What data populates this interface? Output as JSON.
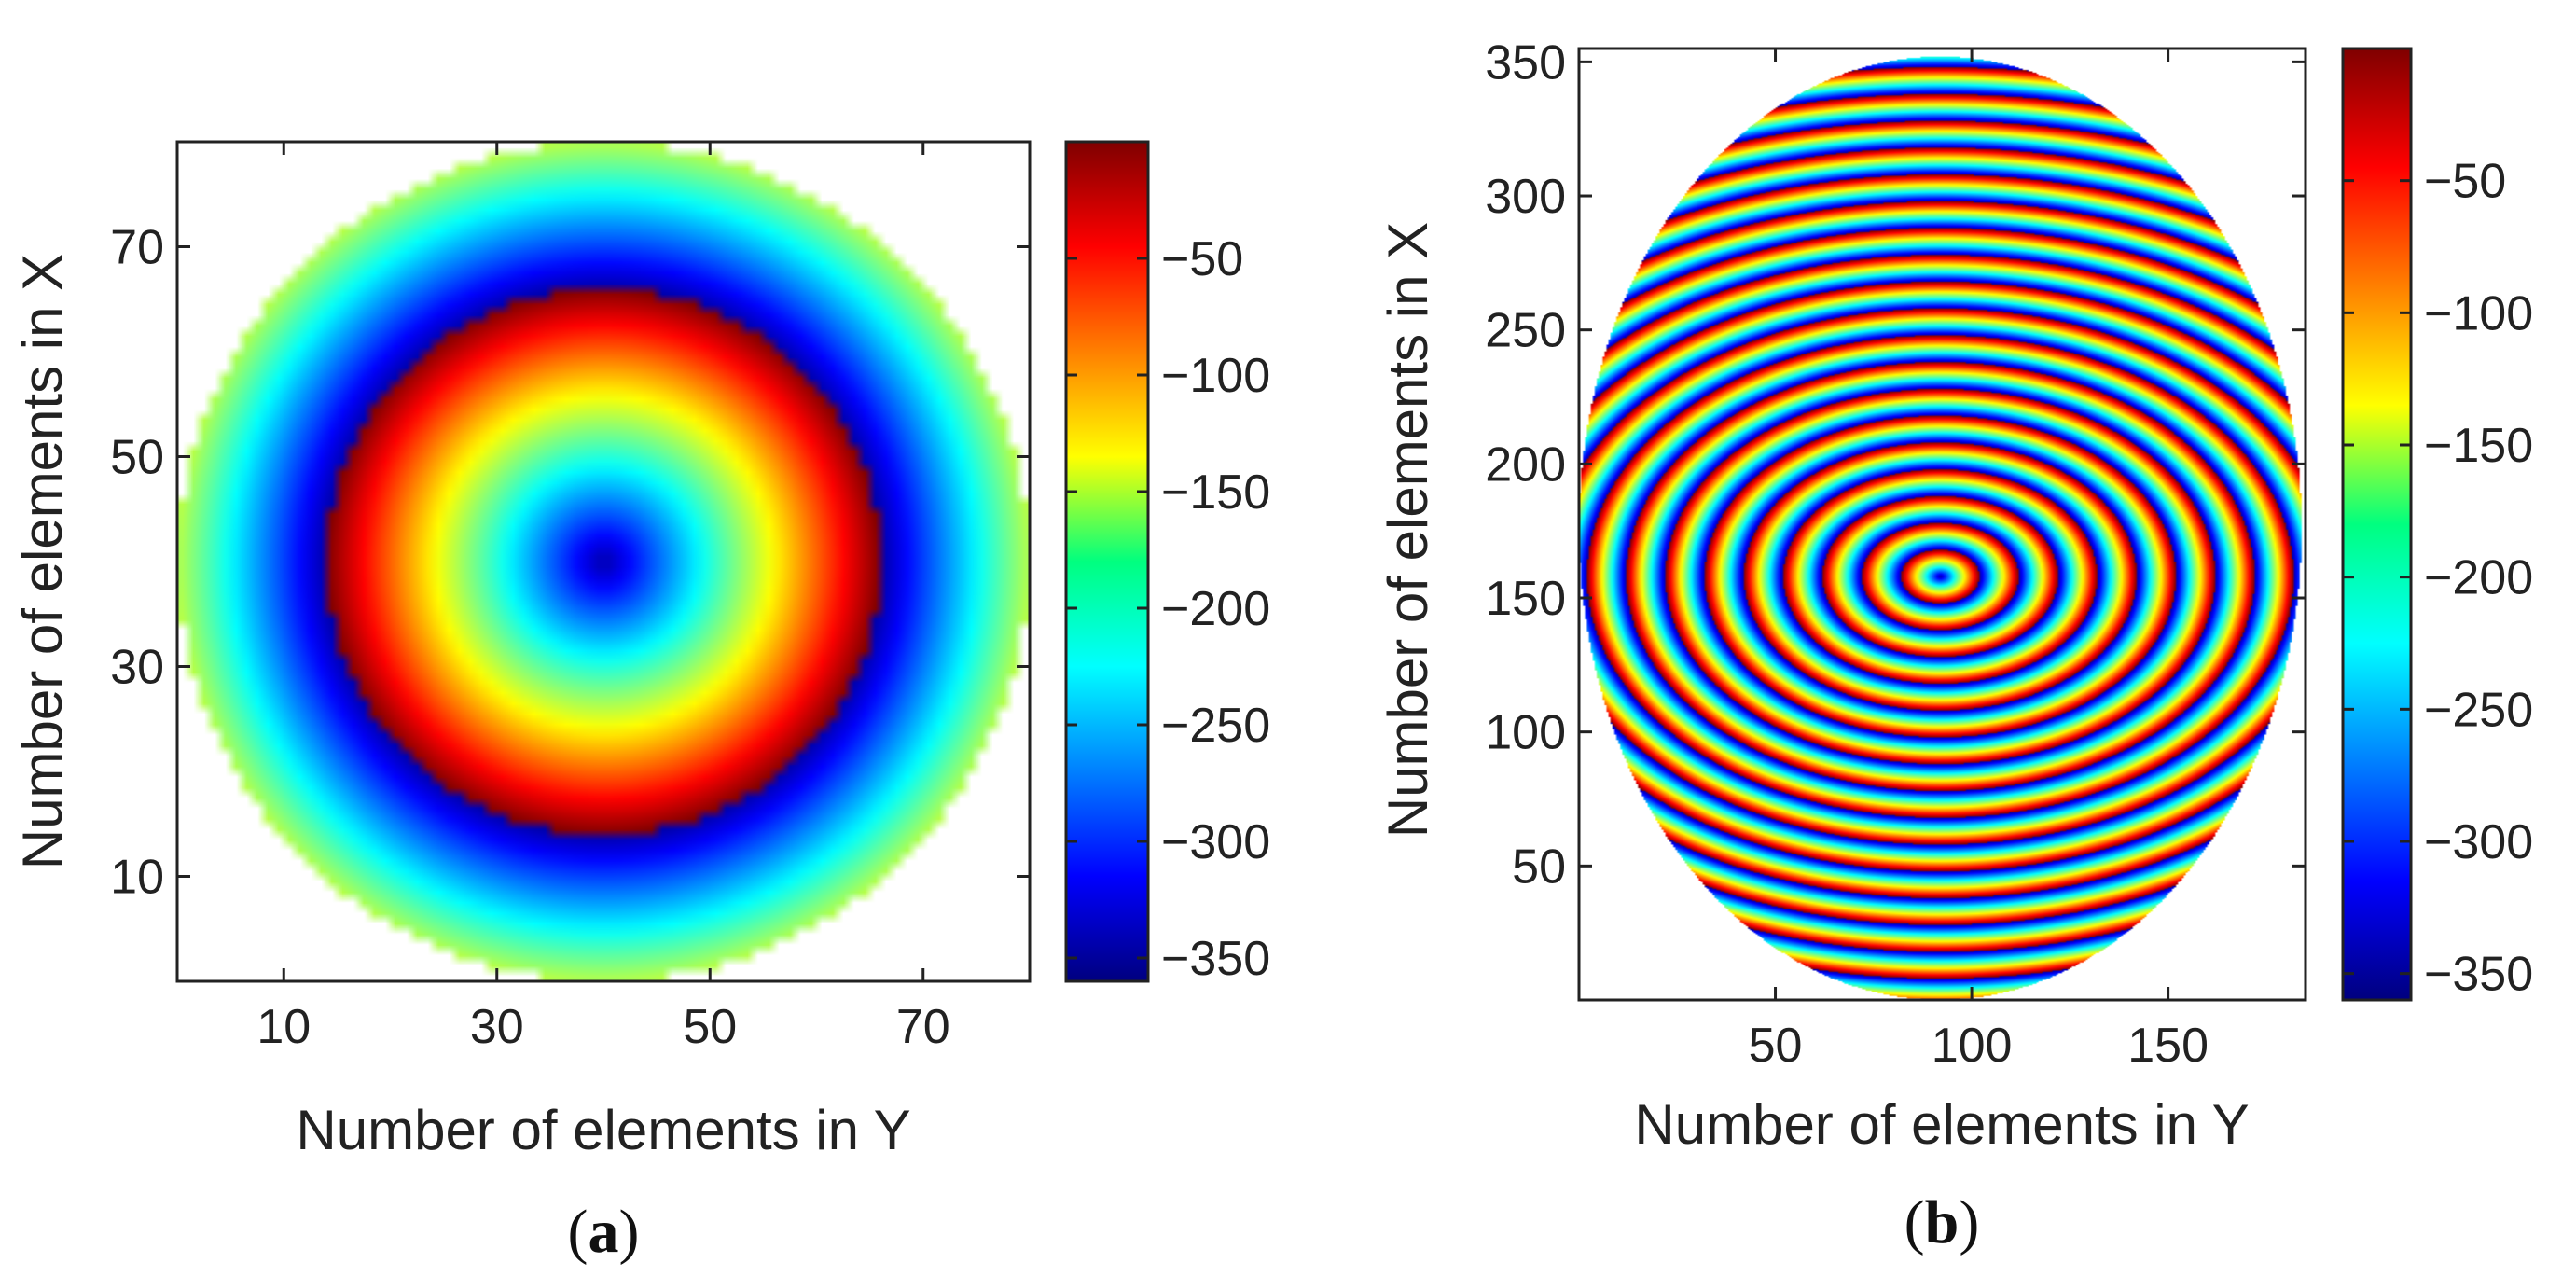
{
  "chart_data": [
    {
      "type": "heatmap",
      "panel_label": "a",
      "xlabel": "Number of elements in Y",
      "ylabel": "Number of elements in X",
      "xlim": [
        0,
        80
      ],
      "ylim": [
        0,
        80
      ],
      "x_ticks": [
        10,
        30,
        50,
        70
      ],
      "y_ticks": [
        10,
        30,
        50,
        70
      ],
      "aperture": "circle",
      "aperture_center": [
        40,
        40
      ],
      "aperture_radius": 40,
      "phase_center": [
        40,
        40
      ],
      "phase_period": 26,
      "grid": false,
      "colorbar": {
        "colormap": "jet",
        "range": [
          -360,
          0
        ],
        "ticks": [
          -50,
          -100,
          -150,
          -200,
          -250,
          -300,
          -350
        ]
      }
    },
    {
      "type": "heatmap",
      "panel_label": "b",
      "xlabel": "Number of elements in Y",
      "ylabel": "Number of elements in X",
      "xlim": [
        0,
        185
      ],
      "ylim": [
        0,
        355
      ],
      "x_ticks": [
        50,
        100,
        150
      ],
      "y_ticks": [
        50,
        100,
        150,
        200,
        250,
        300,
        350
      ],
      "aperture": "ellipse",
      "aperture_center": [
        92,
        176
      ],
      "aperture_radii": [
        92,
        176
      ],
      "phase_center": [
        92,
        158
      ],
      "phase_period": 10,
      "grid": false,
      "colorbar": {
        "colormap": "jet",
        "range": [
          -360,
          0
        ],
        "ticks": [
          -50,
          -100,
          -150,
          -200,
          -250,
          -300,
          -350
        ]
      }
    }
  ]
}
